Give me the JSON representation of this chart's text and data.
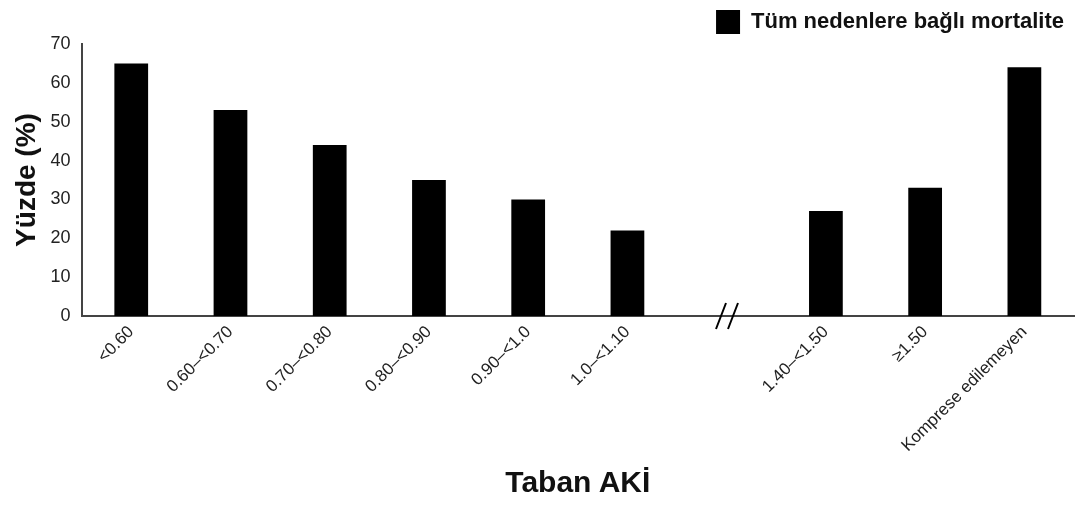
{
  "chart_data": {
    "type": "bar",
    "xlabel": "Taban AKİ",
    "ylabel": "Yüzde (%)",
    "categories": [
      "<0.60",
      "0.60–<0.70",
      "0.70–<0.80",
      "0.80–<0.90",
      "0.90–<1.0",
      "1.0–<1.10",
      null,
      "1.40–<1.50",
      "≥1.50",
      "Komprese edilemeyen"
    ],
    "series": [
      {
        "name": "Tüm nedenlere bağlı mortalite",
        "color": "#000000",
        "values": [
          65,
          53,
          44,
          35,
          30,
          22,
          null,
          27,
          33,
          64
        ]
      }
    ],
    "ylim": [
      0,
      70
    ],
    "yticks": [
      0,
      10,
      20,
      30,
      40,
      50,
      60,
      70
    ],
    "grid": false,
    "legend": "top"
  }
}
